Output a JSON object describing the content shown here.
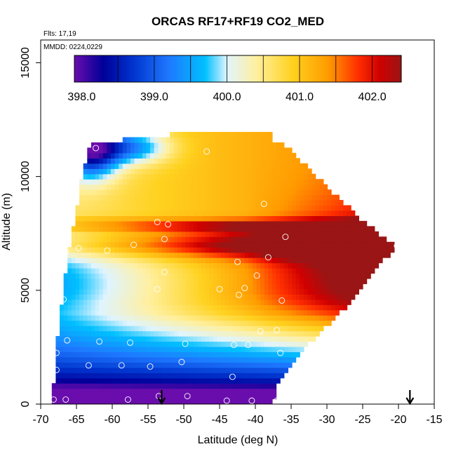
{
  "chart_data": {
    "type": "heatmap",
    "title": "ORCAS RF17+RF19 CO2_MED",
    "xlabel": "Latitude (deg N)",
    "ylabel": "Altitude (m)",
    "xlim": [
      -70,
      -15
    ],
    "ylim": [
      0,
      16000
    ],
    "xticks": [
      -70,
      -65,
      -60,
      -55,
      -50,
      -45,
      -40,
      -35,
      -30,
      -25,
      -20,
      -15
    ],
    "yticks": [
      0,
      5000,
      10000,
      15000
    ],
    "annotation_flights": "Flts: 17,19",
    "annotation_dates": "MMDD: 0224,0229",
    "colorbar": {
      "range": [
        397.9,
        402.4
      ],
      "tick_values": [
        398.0,
        399.0,
        400.0,
        401.0,
        402.0
      ],
      "tick_labels": [
        "398.0",
        "399.0",
        "400.0",
        "401.0",
        "402.0"
      ],
      "segment_breaks": [
        398.5,
        399.0,
        399.5,
        400.0,
        400.5,
        401.0,
        401.5,
        402.0
      ],
      "colors": [
        "#6a0dad",
        "#000099",
        "#0033cc",
        "#1e78ff",
        "#00c0ff",
        "#dff4ff",
        "#fff0a0",
        "#ffd220",
        "#ff9a00",
        "#ff3000",
        "#d00000",
        "#9a1515"
      ],
      "stops": [
        397.9,
        398.3,
        398.7,
        399.2,
        399.7,
        400.0,
        400.4,
        400.9,
        401.4,
        401.8,
        402.1,
        402.4
      ]
    },
    "domain_boundary": {
      "left_edge": [
        [
          -68.3,
          0
        ],
        [
          -68.0,
          2000
        ],
        [
          -67.0,
          4500
        ],
        [
          -66.3,
          6500
        ],
        [
          -65.3,
          8000
        ],
        [
          -64.3,
          10000
        ],
        [
          -63.2,
          11400
        ]
      ],
      "top_edge": [
        [
          -63.2,
          11400
        ],
        [
          -58.8,
          11400
        ],
        [
          -58.3,
          11700
        ],
        [
          -52.0,
          11700
        ],
        [
          -51.6,
          12000
        ],
        [
          -37.8,
          12000
        ],
        [
          -36.5,
          11600
        ]
      ],
      "right_edge": [
        [
          -36.5,
          11600
        ],
        [
          -31.5,
          10000
        ],
        [
          -25.5,
          8200
        ],
        [
          -20.3,
          6900
        ],
        [
          -24.5,
          5500
        ],
        [
          -27.5,
          4200
        ],
        [
          -31.5,
          3000
        ],
        [
          -35.0,
          1800
        ],
        [
          -37.2,
          700
        ],
        [
          -37.5,
          0
        ]
      ]
    },
    "field_model": {
      "description": "CO2 mixing ratio (ppm) curtain; low values near surface/south, high values aloft to the north, peak layer ~7000 m",
      "layers": [
        {
          "alt": 7000,
          "value": 402.2,
          "lat_center": -20,
          "width_alt": 700
        },
        {
          "alt": 7800,
          "value": 401.4,
          "lat_center": -40,
          "width_alt": 350
        }
      ]
    },
    "sample_points": [
      {
        "lat": -68.2,
        "alt": 200
      },
      {
        "lat": -66.5,
        "alt": 200
      },
      {
        "lat": -57.8,
        "alt": 200
      },
      {
        "lat": -53.5,
        "alt": 350
      },
      {
        "lat": -49.5,
        "alt": 350
      },
      {
        "lat": -44.0,
        "alt": 150
      },
      {
        "lat": -40.5,
        "alt": 150
      },
      {
        "lat": -37.0,
        "alt": 150
      },
      {
        "lat": -67.8,
        "alt": 1500
      },
      {
        "lat": -63.3,
        "alt": 1700
      },
      {
        "lat": -58.7,
        "alt": 1700
      },
      {
        "lat": -54.7,
        "alt": 1650
      },
      {
        "lat": -50.3,
        "alt": 1850
      },
      {
        "lat": -43.2,
        "alt": 1200
      },
      {
        "lat": -67.8,
        "alt": 2250
      },
      {
        "lat": -66.3,
        "alt": 2800
      },
      {
        "lat": -61.8,
        "alt": 2750
      },
      {
        "lat": -57.5,
        "alt": 2700
      },
      {
        "lat": -49.8,
        "alt": 2650
      },
      {
        "lat": -43.0,
        "alt": 2600
      },
      {
        "lat": -41.0,
        "alt": 2600
      },
      {
        "lat": -36.5,
        "alt": 2250
      },
      {
        "lat": -39.3,
        "alt": 3200
      },
      {
        "lat": -37.0,
        "alt": 3250
      },
      {
        "lat": -66.8,
        "alt": 4600
      },
      {
        "lat": -53.7,
        "alt": 5050
      },
      {
        "lat": -45.0,
        "alt": 5050
      },
      {
        "lat": -42.3,
        "alt": 4800
      },
      {
        "lat": -36.3,
        "alt": 4550
      },
      {
        "lat": -41.5,
        "alt": 5100
      },
      {
        "lat": -39.8,
        "alt": 5650
      },
      {
        "lat": -52.7,
        "alt": 5800
      },
      {
        "lat": -42.5,
        "alt": 6250
      },
      {
        "lat": -66.5,
        "alt": 6700
      },
      {
        "lat": -64.7,
        "alt": 6850
      },
      {
        "lat": -60.7,
        "alt": 6750
      },
      {
        "lat": -57.0,
        "alt": 7000
      },
      {
        "lat": -52.7,
        "alt": 7250
      },
      {
        "lat": -35.8,
        "alt": 7350
      },
      {
        "lat": -38.2,
        "alt": 6450
      },
      {
        "lat": -20.2,
        "alt": 6950
      },
      {
        "lat": -53.7,
        "alt": 8000
      },
      {
        "lat": -52.2,
        "alt": 7900
      },
      {
        "lat": -38.8,
        "alt": 8800
      },
      {
        "lat": -46.8,
        "alt": 11100
      },
      {
        "lat": -62.3,
        "alt": 11250
      }
    ],
    "flight_markers": [
      {
        "lat": -53.1
      },
      {
        "lat": -18.4
      }
    ]
  }
}
